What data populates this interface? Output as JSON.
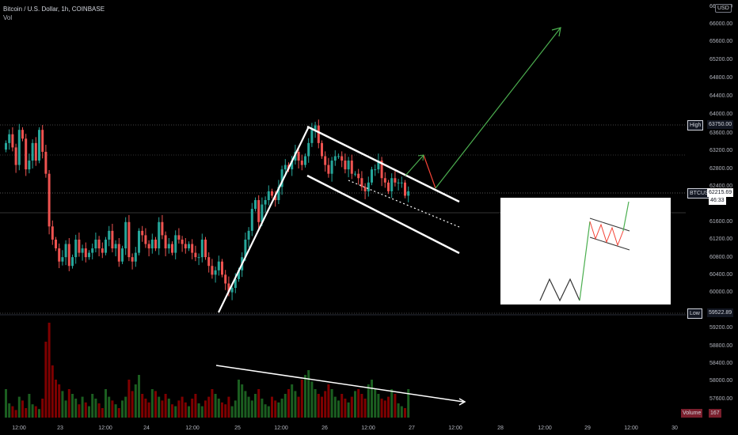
{
  "legend": {
    "symbol_line": "Bitcoin / U.S. Dollar, 1h, COINBASE",
    "volume_label": "Vol"
  },
  "price_axis": {
    "currency_badge": "USD",
    "labels": [
      "66000.00",
      "65600.00",
      "65200.00",
      "64800.00",
      "64400.00",
      "64000.00",
      "63600.00",
      "63200.00",
      "62800.00",
      "62400.00",
      "61600.00",
      "61200.00",
      "60800.00",
      "60400.00",
      "60000.00",
      "59200.00",
      "58800.00",
      "58400.00",
      "58000.00",
      "57600.00"
    ],
    "top_cut_label": "66400.00",
    "hidden_label": "59600.00"
  },
  "price_tags": {
    "high_name": "High",
    "high_value": "63750.00",
    "current_name": "BTCUSD",
    "current_value": "62215.69",
    "countdown": "46:33",
    "low_name": "Low",
    "low_value": "59522.89",
    "volume_name": "Volume",
    "volume_value": "167"
  },
  "time_axis": {
    "labels": [
      "12:00",
      "23",
      "12:00",
      "24",
      "12:00",
      "25",
      "12:00",
      "26",
      "12:00",
      "27",
      "12:00",
      "28",
      "12:00",
      "29",
      "12:00",
      "30"
    ]
  },
  "colors": {
    "background": "#000000",
    "up": "#26a69a",
    "down": "#ef5350",
    "up_volume": "#1b5e20",
    "down_volume": "#7f0000",
    "drawing": "#ffffff",
    "projection_up": "#4caf50",
    "projection_down": "#f44336"
  },
  "chart_data": {
    "type": "candlestick",
    "symbol": "BTCUSD",
    "interval": "1h",
    "exchange": "COINBASE",
    "x_start": "22 12:00",
    "x_end_visible": "27 ~03:00",
    "ylim": [
      57300,
      66400
    ],
    "high": 63750.0,
    "low": 59522.89,
    "last": 62215.69,
    "close_path": [
      63300,
      63500,
      63200,
      62800,
      63600,
      63400,
      62700,
      62900,
      63300,
      62900,
      63600,
      63100,
      62600,
      61400,
      61100,
      60900,
      60600,
      60700,
      61000,
      60500,
      60700,
      61100,
      60800,
      60900,
      60700,
      60800,
      60900,
      61100,
      60900,
      60800,
      61100,
      61300,
      60900,
      61000,
      60600,
      60900,
      61500,
      60700,
      60600,
      60800,
      61300,
      61200,
      61000,
      60900,
      61100,
      60900,
      61500,
      61200,
      60900,
      61000,
      60800,
      61200,
      61100,
      61000,
      60900,
      61000,
      60800,
      60700,
      60700,
      61100,
      60700,
      60500,
      60300,
      60400,
      60600,
      60300,
      60100,
      59900,
      60000,
      60200,
      60400,
      60700,
      61100,
      61300,
      61800,
      62000,
      61500,
      61900,
      62000,
      62200,
      62100,
      62000,
      62300,
      62700,
      62800,
      62700,
      62900,
      63100,
      62900,
      62800,
      63000,
      63300,
      63600,
      63700,
      63300,
      63000,
      62800,
      62600,
      62900,
      63000,
      63000,
      62900,
      62700,
      62900,
      62600,
      62600,
      62500,
      62300,
      62200,
      62400,
      62700,
      62700,
      62900,
      62500,
      62400,
      62200,
      62500,
      62400,
      62400,
      62400,
      62100,
      62200
    ],
    "volume_path": [
      30,
      15,
      12,
      8,
      22,
      18,
      10,
      25,
      14,
      12,
      9,
      20,
      80,
      100,
      55,
      40,
      35,
      28,
      18,
      30,
      25,
      20,
      14,
      22,
      16,
      12,
      25,
      20,
      15,
      10,
      30,
      22,
      18,
      14,
      10,
      18,
      22,
      40,
      28,
      35,
      45,
      25,
      20,
      16,
      30,
      28,
      22,
      18,
      25,
      20,
      14,
      12,
      18,
      22,
      16,
      12,
      20,
      25,
      15,
      12,
      18,
      22,
      30,
      25,
      20,
      16,
      14,
      22,
      12,
      18,
      40,
      35,
      28,
      22,
      18,
      25,
      30,
      20,
      14,
      12,
      22,
      18,
      16,
      20,
      25,
      30,
      35,
      28,
      22,
      40,
      45,
      50,
      38,
      30,
      25,
      22,
      28,
      35,
      30,
      22,
      18,
      25,
      20,
      16,
      22,
      28,
      30,
      25,
      20,
      35,
      40,
      30,
      25,
      20,
      18,
      22,
      30,
      25,
      15,
      12,
      10
    ]
  }
}
